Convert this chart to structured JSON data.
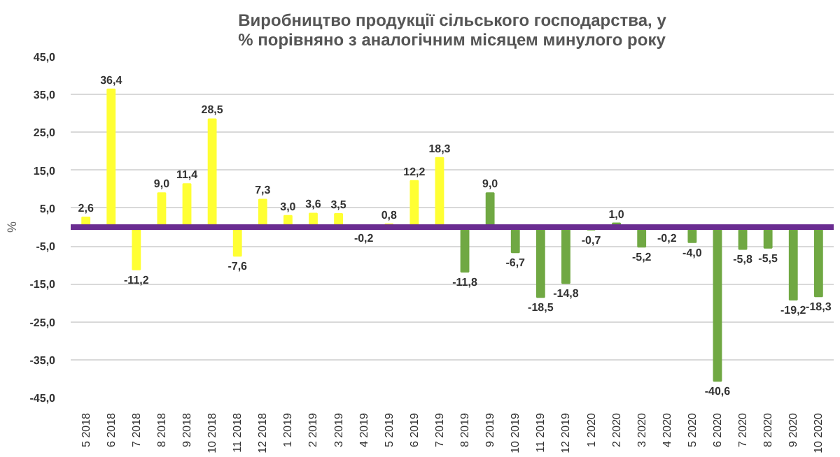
{
  "chart_data": {
    "type": "bar",
    "title": "Виробництво продукції сільського господарства, у % порівняно з аналогічним місяцем минулого року",
    "ylabel": "%",
    "categories": [
      "5 2018",
      "6 2018",
      "7 2018",
      "8 2018",
      "9 2018",
      "10 2018",
      "11 2018",
      "12 2018",
      "1 2019",
      "2 2019",
      "3 2019",
      "4 2019",
      "5 2019",
      "6 2019",
      "7 2019",
      "8 2019",
      "9 2019",
      "10 2019",
      "11 2019",
      "12 2019",
      "1 2020",
      "2 2020",
      "3 2020",
      "4 2020",
      "5 2020",
      "6 2020",
      "7 2020",
      "8 2020",
      "9 2020",
      "10 2020"
    ],
    "values": [
      2.6,
      36.4,
      -11.2,
      9.0,
      11.4,
      28.5,
      -7.6,
      7.3,
      3.0,
      3.6,
      3.5,
      -0.2,
      0.8,
      12.2,
      18.3,
      -11.8,
      9.0,
      -6.7,
      -18.5,
      -14.8,
      -0.7,
      1.0,
      -5.2,
      -0.2,
      -4.0,
      -40.6,
      -5.8,
      -5.5,
      -19.2,
      -18.3
    ],
    "value_labels": [
      "2,6",
      "36,4",
      "-11,2",
      "9,0",
      "11,4",
      "28,5",
      "-7,6",
      "7,3",
      "3,0",
      "3,6",
      "3,5",
      "-0,2",
      "0,8",
      "12,2",
      "18,3",
      "-11,8",
      "9,0",
      "-6,7",
      "-18,5",
      "-14,8",
      "-0,7",
      "1,0",
      "-5,2",
      "-0,2",
      "-4,0",
      "-40,6",
      "-5,8",
      "-5,5",
      "-19,2",
      "-18,3"
    ],
    "colors": [
      "#ffff33",
      "#ffff33",
      "#ffff33",
      "#ffff33",
      "#ffff33",
      "#ffff33",
      "#ffff33",
      "#ffff33",
      "#ffff33",
      "#ffff33",
      "#ffff33",
      "#ffff33",
      "#ffff33",
      "#ffff33",
      "#ffff33",
      "#70a843",
      "#70a843",
      "#70a843",
      "#70a843",
      "#70a843",
      "#70a843",
      "#70a843",
      "#70a843",
      "#70a843",
      "#70a843",
      "#70a843",
      "#70a843",
      "#70a843",
      "#70a843",
      "#70a843"
    ],
    "ylim": [
      -45,
      45
    ],
    "yticks": [
      {
        "value": 45,
        "label": "45,0"
      },
      {
        "value": 35,
        "label": "35,0"
      },
      {
        "value": 25,
        "label": "25,0"
      },
      {
        "value": 15,
        "label": "15,0"
      },
      {
        "value": 5,
        "label": "5,0"
      },
      {
        "value": -5,
        "label": "-5,0"
      },
      {
        "value": -15,
        "label": "-15,0"
      },
      {
        "value": -25,
        "label": "-25,0"
      },
      {
        "value": -35,
        "label": "-35,0"
      },
      {
        "value": -45,
        "label": "-45,0"
      }
    ],
    "ref_lines": [
      {
        "axis": "y",
        "value": 0,
        "label": null,
        "color": "#6a2c91"
      }
    ],
    "grid": "y"
  }
}
